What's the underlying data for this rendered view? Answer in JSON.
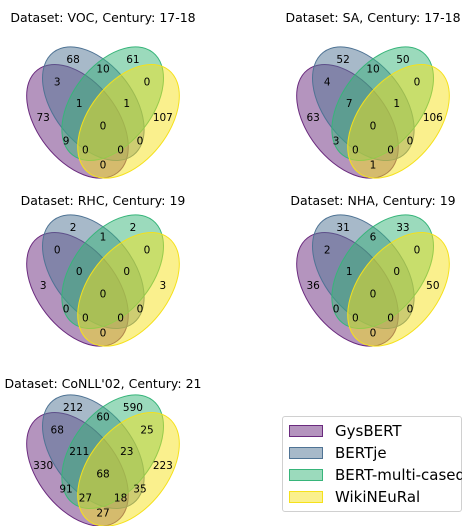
{
  "chart_data": [
    {
      "type": "venn4",
      "title": "Dataset: VOC, Century: 17-18",
      "series": [
        "GysBERT",
        "BERTje",
        "BERT-multi-cased",
        "WikiNEuRal"
      ],
      "regions": {
        "A": 73,
        "B": 68,
        "C": 61,
        "D": 107,
        "AB": 3,
        "BC": 10,
        "CD": 0,
        "AD": 0,
        "ABC": 1,
        "BCD": 1,
        "ACD": 0,
        "ABD": 9,
        "ABCD": 0,
        "AC": 0,
        "BD": 0
      }
    },
    {
      "type": "venn4",
      "title": "Dataset: SA, Century: 17-18",
      "series": [
        "GysBERT",
        "BERTje",
        "BERT-multi-cased",
        "WikiNEuRal"
      ],
      "regions": {
        "A": 63,
        "B": 52,
        "C": 50,
        "D": 106,
        "AB": 4,
        "BC": 10,
        "CD": 0,
        "AD": 1,
        "ABC": 7,
        "BCD": 1,
        "ACD": 0,
        "ABD": 3,
        "ABCD": 0,
        "AC": 0,
        "BD": 0
      }
    },
    {
      "type": "venn4",
      "title": "Dataset: RHC, Century: 19",
      "series": [
        "GysBERT",
        "BERTje",
        "BERT-multi-cased",
        "WikiNEuRal"
      ],
      "regions": {
        "A": 3,
        "B": 2,
        "C": 2,
        "D": 3,
        "AB": 0,
        "BC": 1,
        "CD": 0,
        "AD": 0,
        "ABC": 0,
        "BCD": 0,
        "ACD": 0,
        "ABD": 0,
        "ABCD": 0,
        "AC": 0,
        "BD": 0
      }
    },
    {
      "type": "venn4",
      "title": "Dataset: NHA, Century: 19",
      "series": [
        "GysBERT",
        "BERTje",
        "BERT-multi-cased",
        "WikiNEuRal"
      ],
      "regions": {
        "A": 36,
        "B": 31,
        "C": 33,
        "D": 50,
        "AB": 2,
        "BC": 6,
        "CD": 0,
        "AD": 0,
        "ABC": 1,
        "BCD": 0,
        "ACD": 0,
        "ABD": 0,
        "ABCD": 0,
        "AC": 0,
        "BD": 0
      }
    },
    {
      "type": "venn4",
      "title": "Dataset: CoNLL'02, Century: 21",
      "series": [
        "GysBERT",
        "BERTje",
        "BERT-multi-cased",
        "WikiNEuRal"
      ],
      "regions": {
        "A": 330,
        "B": 212,
        "C": 590,
        "D": 223,
        "AB": 68,
        "BC": 60,
        "CD": 25,
        "AD": 27,
        "ABC": 211,
        "BCD": 23,
        "ACD": 35,
        "ABD": 91,
        "ABCD": 68,
        "AC": 27,
        "BD": 18
      }
    }
  ],
  "legend": [
    {
      "label": "GysBERT",
      "color": "#6a2a7e"
    },
    {
      "label": "BERTje",
      "color": "#4f7394"
    },
    {
      "label": "BERT-multi-cased",
      "color": "#37b57a"
    },
    {
      "label": "WikiNEuRal",
      "color": "#f5e11b"
    }
  ]
}
